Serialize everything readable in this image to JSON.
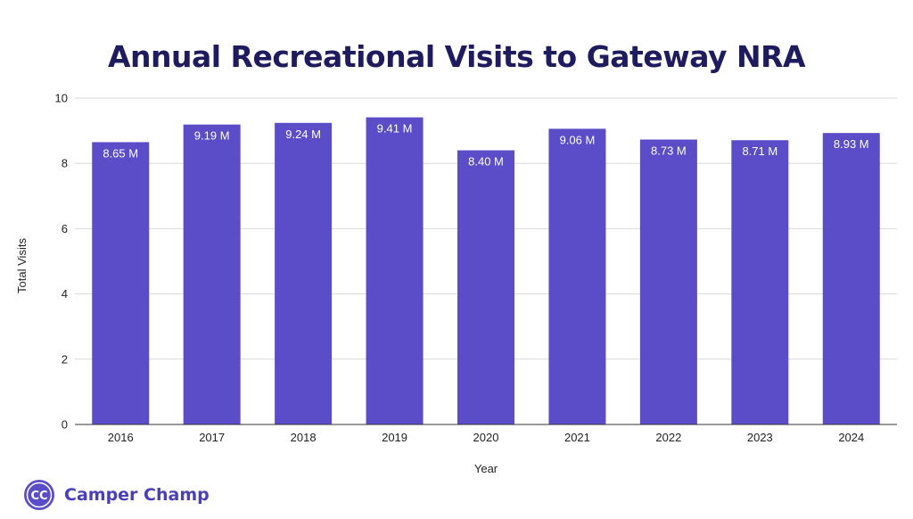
{
  "chart_data": {
    "type": "bar",
    "title": "Annual Recreational Visits to Gateway NRA",
    "xlabel": "Year",
    "ylabel": "Total Visits",
    "categories": [
      "2016",
      "2017",
      "2018",
      "2019",
      "2020",
      "2021",
      "2022",
      "2023",
      "2024"
    ],
    "values": [
      8.65,
      9.19,
      9.24,
      9.41,
      8.4,
      9.06,
      8.73,
      8.71,
      8.93
    ],
    "data_labels": [
      "8.65 M",
      "9.19 M",
      "9.24 M",
      "9.41 M",
      "8.40 M",
      "9.06 M",
      "8.73 M",
      "8.71 M",
      "8.93 M"
    ],
    "ylim": [
      0,
      10
    ],
    "yticks": [
      "0",
      "2",
      "4",
      "6",
      "8",
      "10"
    ],
    "grid": true,
    "bar_color": "#5b4cc8"
  },
  "brand": {
    "logo_text": "CC",
    "name": "Camper Champ"
  }
}
